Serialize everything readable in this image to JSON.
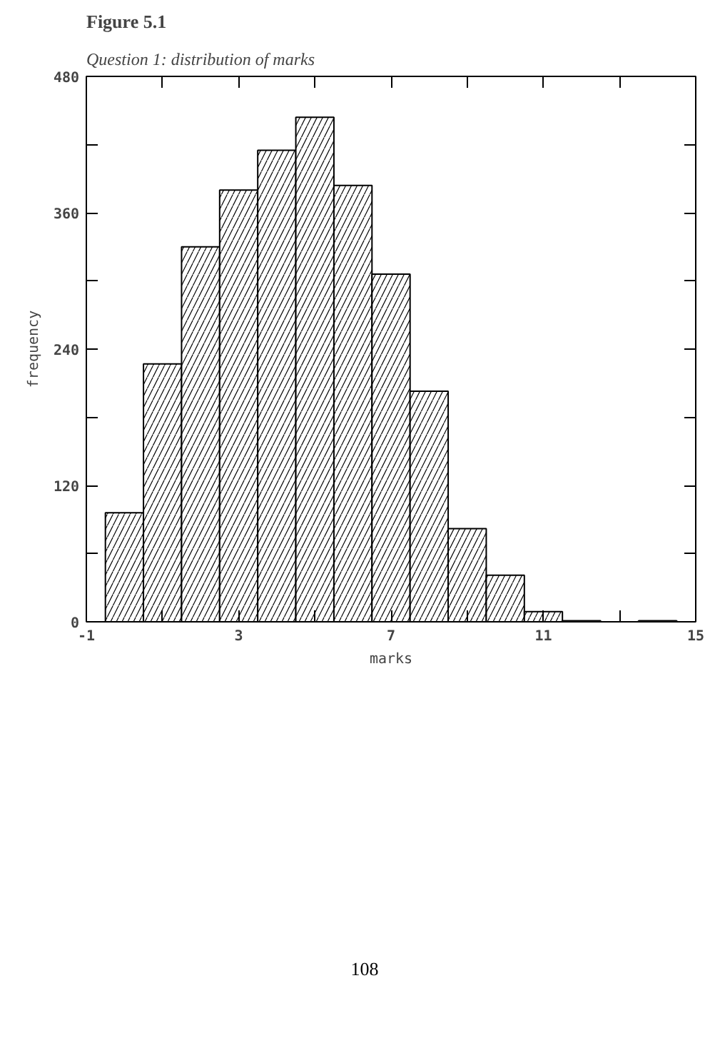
{
  "chart_data": {
    "type": "histogram",
    "title": "Figure 5.1",
    "subtitle": "Question 1: distribution of marks",
    "xlabel": "marks",
    "ylabel": "frequency",
    "bins": [
      -0.5,
      0.5,
      1.5,
      2.5,
      3.5,
      4.5,
      5.5,
      6.5,
      7.5,
      8.5,
      9.5,
      10.5,
      11.5,
      12.5,
      13.5,
      14.5
    ],
    "values": [
      96,
      227,
      330,
      380,
      415,
      444,
      384,
      306,
      203,
      82,
      41,
      9,
      1,
      0,
      1
    ],
    "color": "#000000",
    "xlim": [
      -1,
      15
    ],
    "xticks": [
      -1,
      {
        "value": 1,
        "label": null
      },
      3,
      {
        "value": 5,
        "label": null
      },
      7,
      {
        "value": 9,
        "label": null
      },
      11,
      {
        "value": 13,
        "label": null
      },
      15
    ],
    "ylim": [
      0,
      480
    ],
    "yticks": [
      0,
      {
        "value": 60,
        "label": null
      },
      120,
      {
        "value": 180,
        "label": null
      },
      240,
      {
        "value": 300,
        "label": null
      },
      360,
      {
        "value": 420,
        "label": null
      },
      480
    ],
    "annotations": [
      "108"
    ],
    "grid": false
  }
}
